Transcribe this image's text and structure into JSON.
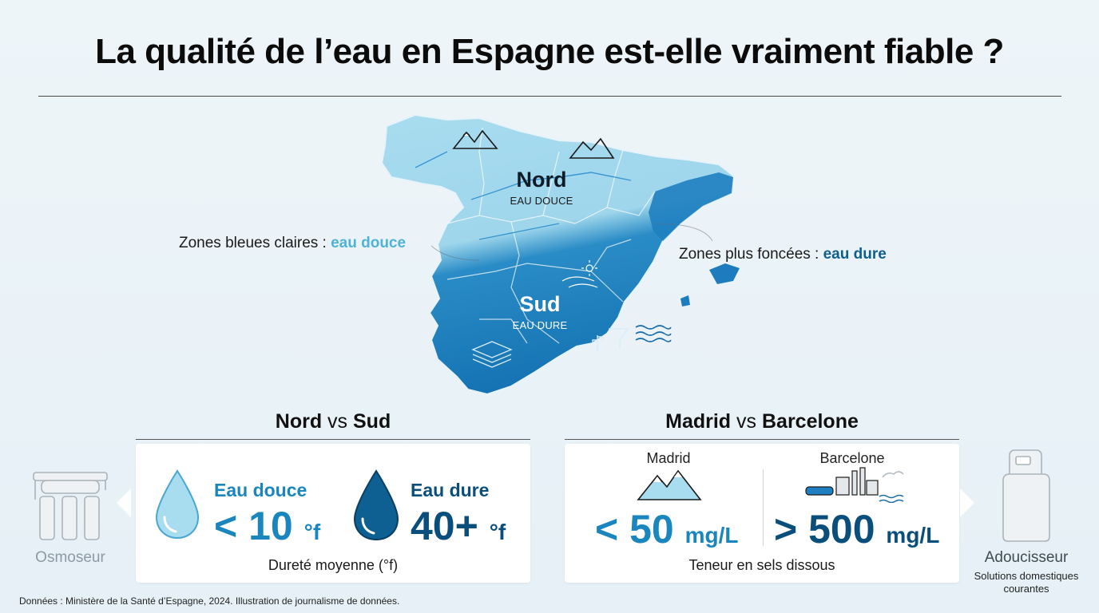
{
  "title": "La qualité de l’eau en Espagne est-elle vraiment fiable ?",
  "map": {
    "north_label": "Nord",
    "north_sub": "EAU DOUCE",
    "south_label": "Sud",
    "south_sub": "EAU DURE",
    "legend_light_prefix": "Zones bleues claires : ",
    "legend_light_value": "eau douce",
    "legend_dark_prefix": "Zones plus foncées : ",
    "legend_dark_value": "eau dure"
  },
  "colors": {
    "light_water": "#a8dcef",
    "dark_water": "#1878b8",
    "accent_light": "#1a86bd",
    "accent_dark": "#0a4f7c"
  },
  "north_south": {
    "title_a": "Nord",
    "title_vs": " vs ",
    "title_b": "Sud",
    "soft_label": "Eau douce",
    "soft_value": "< 10",
    "soft_unit": "°f",
    "hard_label": "Eau dure",
    "hard_value": "40+",
    "hard_unit": "°f",
    "caption": "Dureté moyenne (°f)"
  },
  "cities": {
    "title_a": "Madrid",
    "title_vs": " vs ",
    "title_b": "Barcelone",
    "madrid_label": "Madrid",
    "madrid_value": "< 50",
    "madrid_unit": "mg/L",
    "barcelona_label": "Barcelone",
    "barcelona_value": "> 500",
    "barcelona_unit": "mg/L",
    "caption": "Teneur en sels dissous"
  },
  "left_device": {
    "label": "Osmoseur",
    "icon": "reverse-osmosis-filter-icon"
  },
  "right_device": {
    "label": "Adoucisseur",
    "sub_line1": "Solutions domestiques",
    "sub_line2": "courantes",
    "icon": "water-softener-icon"
  },
  "footer": "Données : Ministère de la Santé d’Espagne, 2024. Illustration de journalisme de données."
}
